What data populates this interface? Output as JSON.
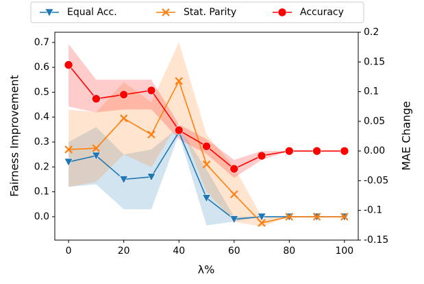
{
  "chart_data": {
    "type": "line",
    "x": [
      0,
      10,
      20,
      30,
      40,
      50,
      60,
      70,
      80,
      90,
      100
    ],
    "xlabel": "λ%",
    "ylabel": "Fairness Improvement",
    "y2label": "MAE Change",
    "xlim": [
      -5,
      105
    ],
    "xticks": [
      0,
      20,
      40,
      60,
      80,
      100
    ],
    "ylim": [
      -0.094,
      0.741
    ],
    "yticks": [
      {
        "value": 0,
        "label": "0.0"
      },
      0.1,
      0.2,
      0.3,
      0.4,
      0.5,
      0.6,
      0.7
    ],
    "y2lim": [
      -0.15,
      0.2
    ],
    "y2ticks": [
      -0.15,
      -0.1,
      -0.05,
      {
        "value": 0,
        "label": "0.00"
      },
      0.05,
      0.1,
      0.15,
      0.2
    ],
    "legend": "upper center",
    "series": [
      {
        "name": "Equal Acc.",
        "color": "#1f77b4",
        "marker": "triangle",
        "values": [
          0.22,
          0.245,
          0.15,
          0.16,
          0.34,
          0.075,
          -0.01,
          0.0,
          0.0,
          0.0,
          0.0
        ],
        "lower": [
          0.12,
          0.13,
          0.03,
          0.03,
          0.33,
          -0.035,
          -0.02,
          0.0,
          0.0,
          0.0,
          0.0
        ],
        "upper": [
          0.3,
          0.36,
          0.25,
          0.27,
          0.36,
          0.19,
          0.0,
          0.0,
          0.0,
          0.0,
          0.0
        ]
      },
      {
        "name": "Stat. Parity",
        "color": "#ff7f0e",
        "marker": "x",
        "values": [
          0.27,
          0.275,
          0.395,
          0.33,
          0.545,
          0.21,
          0.09,
          -0.025,
          0.0,
          0.0,
          0.0
        ],
        "lower": [
          0.12,
          0.14,
          0.25,
          0.2,
          0.38,
          0.1,
          -0.02,
          -0.04,
          0.0,
          0.0,
          0.0
        ],
        "upper": [
          0.43,
          0.42,
          0.54,
          0.46,
          0.7,
          0.33,
          0.2,
          0.0,
          0.0,
          0.0,
          0.0
        ]
      },
      {
        "name": "Accuracy",
        "color": "#ff0000",
        "marker": "circle",
        "axis": "y2",
        "values": [
          0.145,
          0.088,
          0.095,
          0.102,
          0.035,
          0.008,
          -0.03,
          -0.008,
          0.0,
          0.0,
          0.0
        ],
        "lower": [
          0.075,
          0.065,
          0.07,
          0.07,
          0.02,
          -0.005,
          -0.045,
          -0.015,
          0.0,
          0.0,
          0.0
        ],
        "upper": [
          0.18,
          0.12,
          0.12,
          0.12,
          0.045,
          0.02,
          -0.015,
          0.0,
          0.0,
          0.0,
          0.0
        ]
      }
    ]
  }
}
